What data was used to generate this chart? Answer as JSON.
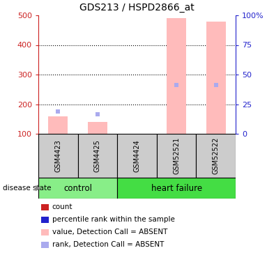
{
  "title": "GDS213 / HSPD2866_at",
  "samples": [
    "GSM4423",
    "GSM4425",
    "GSM4424",
    "GSM52521",
    "GSM52522"
  ],
  "ylim_left": [
    100,
    500
  ],
  "ylim_right": [
    0,
    100
  ],
  "yticks_left": [
    100,
    200,
    300,
    400,
    500
  ],
  "yticks_right": [
    0,
    25,
    50,
    75,
    100
  ],
  "yticklabels_right": [
    "0",
    "25",
    "50",
    "75",
    "100%"
  ],
  "pink_bar_values": [
    160,
    140,
    100,
    490,
    480
  ],
  "blue_square_values": [
    175,
    165,
    null,
    265,
    265
  ],
  "bar_color": "#ffbbbb",
  "blue_color": "#aaaaee",
  "red_color": "#cc2222",
  "left_tick_color": "#cc2222",
  "right_tick_color": "#2222cc",
  "grid_color": "#000000",
  "background_color": "#ffffff",
  "group_control_color": "#88ee88",
  "group_hf_color": "#44dd44",
  "gray_box_color": "#cccccc",
  "legend_items": [
    {
      "label": "count",
      "color": "#cc2222"
    },
    {
      "label": "percentile rank within the sample",
      "color": "#2222cc"
    },
    {
      "label": "value, Detection Call = ABSENT",
      "color": "#ffbbbb"
    },
    {
      "label": "rank, Detection Call = ABSENT",
      "color": "#aaaaee"
    }
  ]
}
